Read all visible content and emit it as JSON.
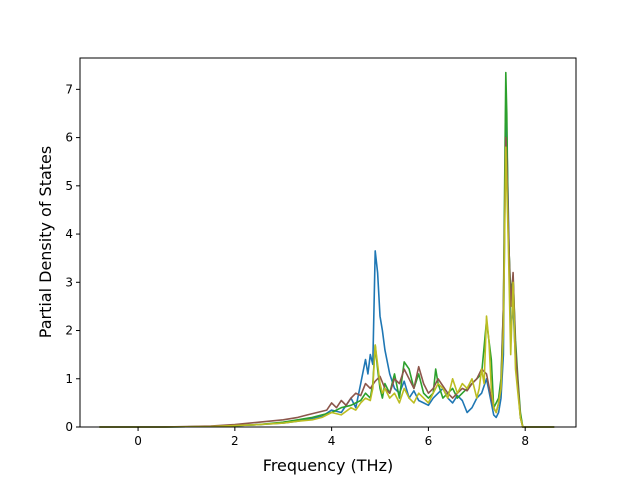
{
  "chart_data": {
    "type": "line",
    "title": "",
    "xlabel": "Frequency (THz)",
    "ylabel": "Partial Density of States",
    "xlim": [
      -1.2,
      9.05
    ],
    "ylim": [
      0,
      7.65
    ],
    "xticks": [
      0,
      2,
      4,
      6,
      8
    ],
    "yticks": [
      0,
      1,
      2,
      3,
      4,
      5,
      6,
      7
    ],
    "grid": false,
    "legend": "none",
    "series": [
      {
        "color": "#1f77b4",
        "x": [
          -0.8,
          0.5,
          1.5,
          2.0,
          2.5,
          3.0,
          3.3,
          3.6,
          3.8,
          4.0,
          4.2,
          4.4,
          4.5,
          4.6,
          4.7,
          4.75,
          4.8,
          4.85,
          4.9,
          4.95,
          5.0,
          5.05,
          5.1,
          5.2,
          5.3,
          5.4,
          5.5,
          5.6,
          5.7,
          5.8,
          5.9,
          6.0,
          6.1,
          6.2,
          6.3,
          6.4,
          6.5,
          6.6,
          6.7,
          6.8,
          6.9,
          7.0,
          7.1,
          7.2,
          7.3,
          7.35,
          7.4,
          7.45,
          7.5,
          7.55,
          7.6,
          7.62,
          7.65,
          7.7,
          7.75,
          7.8,
          7.85,
          7.9,
          7.95,
          8.0,
          8.2,
          8.6
        ],
        "y": [
          0,
          0,
          0.01,
          0.03,
          0.05,
          0.08,
          0.12,
          0.18,
          0.22,
          0.35,
          0.3,
          0.6,
          0.4,
          0.9,
          1.4,
          1.1,
          1.5,
          1.3,
          3.65,
          3.2,
          2.3,
          2.0,
          1.6,
          1.1,
          0.8,
          0.7,
          0.95,
          0.6,
          0.75,
          0.55,
          0.5,
          0.45,
          0.6,
          0.7,
          0.8,
          0.6,
          0.5,
          0.65,
          0.55,
          0.3,
          0.4,
          0.6,
          0.7,
          1.0,
          0.5,
          0.25,
          0.2,
          0.3,
          0.6,
          1.5,
          6.7,
          6.0,
          4.5,
          2.0,
          2.5,
          1.4,
          0.8,
          0.2,
          0,
          0,
          0,
          0
        ]
      },
      {
        "color": "#2ca02c",
        "x": [
          -0.8,
          0.5,
          1.5,
          2.0,
          2.5,
          3.0,
          3.3,
          3.6,
          3.8,
          4.0,
          4.2,
          4.4,
          4.5,
          4.6,
          4.7,
          4.8,
          4.85,
          4.9,
          4.95,
          5.0,
          5.05,
          5.1,
          5.2,
          5.3,
          5.4,
          5.5,
          5.6,
          5.7,
          5.8,
          5.9,
          6.0,
          6.1,
          6.15,
          6.2,
          6.3,
          6.4,
          6.5,
          6.6,
          6.7,
          6.8,
          6.9,
          7.0,
          7.1,
          7.2,
          7.3,
          7.35,
          7.4,
          7.45,
          7.5,
          7.55,
          7.6,
          7.62,
          7.65,
          7.7,
          7.75,
          7.8,
          7.85,
          7.9,
          7.95,
          8.0,
          8.2,
          8.6
        ],
        "y": [
          0,
          0,
          0.01,
          0.03,
          0.05,
          0.1,
          0.15,
          0.2,
          0.25,
          0.3,
          0.4,
          0.45,
          0.5,
          0.55,
          0.7,
          0.6,
          0.9,
          1.7,
          1.2,
          0.8,
          0.6,
          0.9,
          0.7,
          1.1,
          0.6,
          1.35,
          1.2,
          0.8,
          1.1,
          0.7,
          0.6,
          0.7,
          1.2,
          0.9,
          0.6,
          0.7,
          0.8,
          0.6,
          0.7,
          0.8,
          0.9,
          1.0,
          1.1,
          2.2,
          1.4,
          0.4,
          0.5,
          0.6,
          1.0,
          2.5,
          7.35,
          6.5,
          4.0,
          2.8,
          3.1,
          1.8,
          1.0,
          0.3,
          0,
          0,
          0,
          0
        ]
      },
      {
        "color": "#8c564b",
        "x": [
          -0.8,
          0.5,
          1.5,
          2.0,
          2.5,
          3.0,
          3.3,
          3.5,
          3.7,
          3.9,
          4.0,
          4.1,
          4.2,
          4.3,
          4.4,
          4.5,
          4.6,
          4.7,
          4.8,
          4.9,
          5.0,
          5.1,
          5.2,
          5.3,
          5.4,
          5.5,
          5.6,
          5.7,
          5.8,
          5.9,
          6.0,
          6.1,
          6.2,
          6.3,
          6.4,
          6.5,
          6.6,
          6.7,
          6.8,
          6.9,
          7.0,
          7.1,
          7.2,
          7.3,
          7.35,
          7.4,
          7.45,
          7.5,
          7.55,
          7.6,
          7.62,
          7.65,
          7.7,
          7.75,
          7.8,
          7.85,
          7.9,
          7.95,
          8.0,
          8.2,
          8.6
        ],
        "y": [
          0,
          0,
          0.02,
          0.05,
          0.1,
          0.15,
          0.2,
          0.25,
          0.3,
          0.35,
          0.5,
          0.4,
          0.55,
          0.45,
          0.6,
          0.7,
          0.65,
          0.9,
          0.8,
          0.95,
          1.05,
          0.8,
          0.7,
          1.0,
          0.9,
          1.2,
          1.0,
          0.8,
          1.25,
          0.9,
          0.7,
          0.8,
          1.0,
          0.85,
          0.7,
          0.6,
          0.7,
          0.8,
          0.75,
          0.9,
          1.0,
          1.2,
          1.1,
          0.6,
          0.4,
          0.3,
          0.5,
          0.8,
          2.5,
          6.0,
          5.5,
          4.2,
          2.5,
          3.2,
          1.6,
          0.9,
          0.2,
          0,
          0,
          0,
          0
        ]
      },
      {
        "color": "#bcbd22",
        "x": [
          -0.8,
          0.5,
          1.5,
          2.0,
          2.5,
          3.0,
          3.3,
          3.6,
          3.8,
          4.0,
          4.2,
          4.4,
          4.5,
          4.6,
          4.7,
          4.8,
          4.85,
          4.9,
          4.95,
          5.0,
          5.05,
          5.1,
          5.2,
          5.3,
          5.4,
          5.5,
          5.6,
          5.7,
          5.8,
          5.9,
          6.0,
          6.1,
          6.2,
          6.3,
          6.4,
          6.5,
          6.6,
          6.7,
          6.8,
          6.9,
          7.0,
          7.05,
          7.1,
          7.15,
          7.2,
          7.25,
          7.3,
          7.35,
          7.4,
          7.45,
          7.5,
          7.55,
          7.6,
          7.62,
          7.65,
          7.7,
          7.75,
          7.8,
          7.85,
          7.9,
          7.95,
          8.0,
          8.2,
          8.6
        ],
        "y": [
          0,
          0,
          0.01,
          0.03,
          0.05,
          0.08,
          0.12,
          0.15,
          0.2,
          0.3,
          0.25,
          0.4,
          0.35,
          0.5,
          0.6,
          0.55,
          0.8,
          1.7,
          1.3,
          0.9,
          0.7,
          0.8,
          0.6,
          0.7,
          0.5,
          0.8,
          0.6,
          0.5,
          0.7,
          0.6,
          0.5,
          0.7,
          0.9,
          0.8,
          0.6,
          1.0,
          0.7,
          0.9,
          0.8,
          1.0,
          0.6,
          0.8,
          1.2,
          0.9,
          2.3,
          1.8,
          0.8,
          0.4,
          0.3,
          0.5,
          0.8,
          2.0,
          5.8,
          5.0,
          3.8,
          1.5,
          3.0,
          1.2,
          0.7,
          0.2,
          0,
          0,
          0,
          0
        ]
      }
    ]
  }
}
